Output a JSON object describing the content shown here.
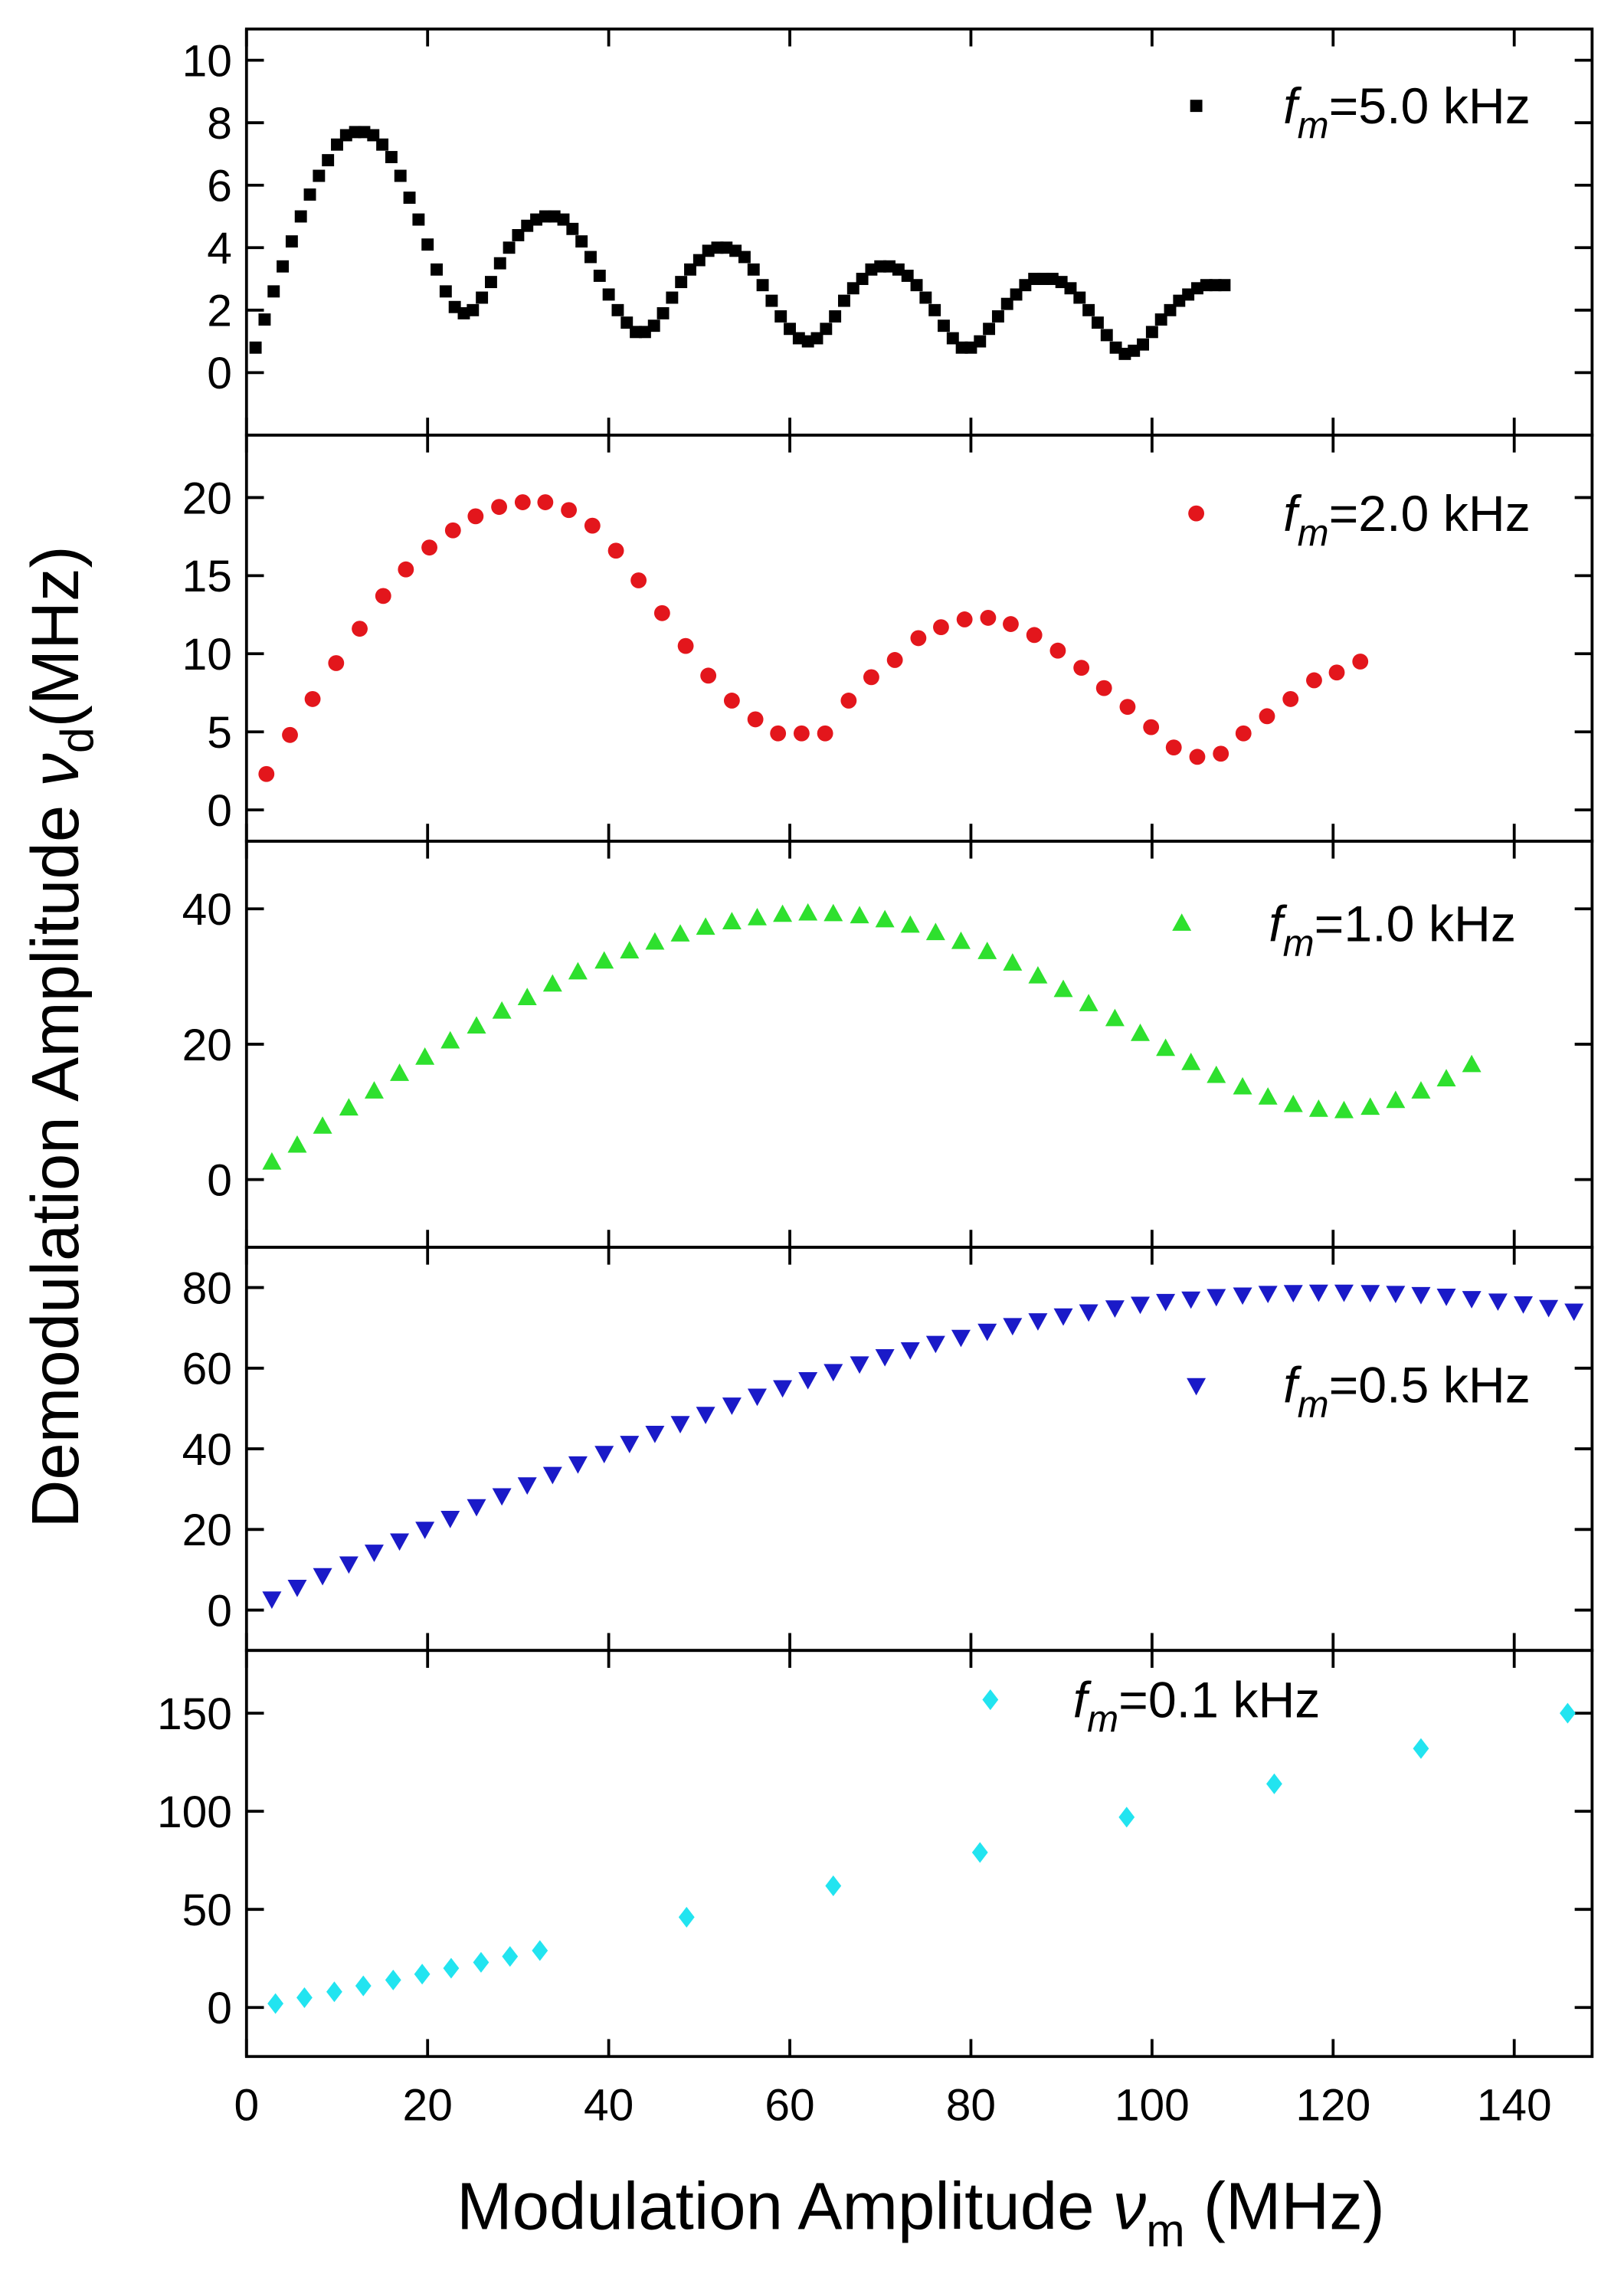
{
  "ylabel": {
    "text": "Demodulation Amplitude ",
    "symbol": "ν",
    "subscript": "d",
    "unit": "(MHz)"
  },
  "xlabel": {
    "text": "Modulation Amplitude ",
    "symbol": "ν",
    "subscript": "m",
    "unit": " (MHz)"
  },
  "chart_data": [
    {
      "type": "scatter",
      "marker": "square",
      "color": "#000000",
      "legend": {
        "symbol": "f",
        "subscript": "m",
        "text": "=5.0 kHz"
      },
      "x": [
        1,
        2,
        3,
        4,
        5,
        6,
        7,
        8,
        9,
        10,
        11,
        12,
        13,
        14,
        15,
        16,
        17,
        18,
        19,
        20,
        21,
        22,
        23,
        24,
        25,
        26,
        27,
        28,
        29,
        30,
        31,
        32,
        33,
        34,
        35,
        36,
        37,
        38,
        39,
        40,
        41,
        42,
        43,
        44,
        45,
        46,
        47,
        48,
        49,
        50,
        51,
        52,
        53,
        54,
        55,
        56,
        57,
        58,
        59,
        60,
        61,
        62,
        63,
        64,
        65,
        66,
        67,
        68,
        69,
        70,
        71,
        72,
        73,
        74,
        75,
        76,
        77,
        78,
        79,
        80,
        81,
        82,
        83,
        84,
        85,
        86,
        87,
        88,
        89,
        90,
        91,
        92,
        93,
        94,
        95,
        96,
        97,
        98,
        99,
        100,
        101,
        102,
        103,
        104,
        105,
        106,
        107,
        108
      ],
      "values": [
        0.8,
        1.7,
        2.6,
        3.4,
        4.2,
        5.0,
        5.7,
        6.3,
        6.8,
        7.3,
        7.6,
        7.7,
        7.7,
        7.6,
        7.3,
        6.9,
        6.3,
        5.6,
        4.9,
        4.1,
        3.3,
        2.6,
        2.1,
        1.9,
        2.0,
        2.4,
        2.9,
        3.5,
        4.0,
        4.4,
        4.7,
        4.9,
        5.0,
        5.0,
        4.9,
        4.6,
        4.2,
        3.7,
        3.1,
        2.5,
        2.0,
        1.6,
        1.3,
        1.3,
        1.5,
        1.9,
        2.4,
        2.9,
        3.3,
        3.6,
        3.9,
        4.0,
        4.0,
        3.9,
        3.7,
        3.3,
        2.8,
        2.3,
        1.8,
        1.4,
        1.1,
        1.0,
        1.1,
        1.4,
        1.8,
        2.3,
        2.7,
        3.0,
        3.3,
        3.4,
        3.4,
        3.3,
        3.1,
        2.8,
        2.4,
        2.0,
        1.5,
        1.1,
        0.8,
        0.8,
        1.0,
        1.4,
        1.8,
        2.2,
        2.5,
        2.8,
        3.0,
        3.0,
        3.0,
        2.9,
        2.7,
        2.4,
        2.0,
        1.6,
        1.2,
        0.8,
        0.6,
        0.7,
        0.9,
        1.3,
        1.7,
        2.0,
        2.3,
        2.5,
        2.7,
        2.8,
        2.8,
        2.8
      ],
      "ylim": [
        -2,
        11
      ],
      "yticks": [
        0,
        2,
        4,
        6,
        8,
        10
      ]
    },
    {
      "type": "scatter",
      "marker": "circle",
      "color": "#e3161c",
      "legend": {
        "symbol": "f",
        "subscript": "m",
        "text": "=2.0 kHz"
      },
      "x": [
        2.2,
        4.8,
        7.3,
        9.9,
        12.5,
        15.1,
        17.6,
        20.2,
        22.8,
        25.3,
        27.9,
        30.5,
        33.0,
        35.6,
        38.2,
        40.8,
        43.3,
        45.9,
        48.5,
        51.0,
        53.6,
        56.2,
        58.7,
        61.3,
        63.9,
        66.5,
        69.0,
        71.6,
        74.2,
        76.7,
        79.3,
        81.9,
        84.4,
        87.0,
        89.6,
        92.2,
        94.7,
        97.3,
        99.9,
        102.4,
        105.0,
        107.6,
        110.1,
        112.7,
        115.3,
        117.9,
        120.4,
        123.0
      ],
      "values": [
        2.3,
        4.8,
        7.1,
        9.4,
        11.6,
        13.7,
        15.4,
        16.8,
        17.9,
        18.8,
        19.4,
        19.7,
        19.7,
        19.2,
        18.2,
        16.6,
        14.7,
        12.6,
        10.5,
        8.6,
        7.0,
        5.8,
        4.9,
        4.9,
        4.9,
        7.0,
        8.5,
        9.6,
        11.0,
        11.7,
        12.2,
        12.3,
        11.9,
        11.2,
        10.2,
        9.1,
        7.8,
        6.6,
        5.3,
        4.0,
        3.4,
        3.6,
        4.9,
        6.0,
        7.1,
        8.3,
        8.8,
        9.5
      ],
      "ylim": [
        -2,
        24
      ],
      "yticks": [
        0,
        5,
        10,
        15,
        20
      ]
    },
    {
      "type": "scatter",
      "marker": "triangle-up",
      "color": "#2ee02e",
      "legend": {
        "symbol": "f",
        "subscript": "m",
        "text": "=1.0 kHz"
      },
      "x": [
        2.8,
        5.6,
        8.4,
        11.3,
        14.1,
        16.9,
        19.7,
        22.5,
        25.4,
        28.2,
        31.0,
        33.8,
        36.6,
        39.5,
        42.3,
        45.1,
        47.9,
        50.7,
        53.6,
        56.4,
        59.2,
        62.0,
        64.8,
        67.7,
        70.5,
        73.3,
        76.1,
        78.9,
        81.8,
        84.6,
        87.4,
        90.2,
        93.0,
        95.9,
        98.7,
        101.5,
        104.3,
        107.1,
        110.0,
        112.8,
        115.6,
        118.4,
        121.2,
        124.1,
        126.9,
        129.7,
        132.5,
        135.3
      ],
      "values": [
        2.5,
        5,
        7.8,
        10.5,
        13,
        15.6,
        18,
        20.4,
        22.6,
        24.8,
        26.8,
        28.8,
        30.6,
        32.2,
        33.7,
        35,
        36.2,
        37.2,
        38,
        38.6,
        39.1,
        39.3,
        39.2,
        38.9,
        38.3,
        37.5,
        36.4,
        35.1,
        33.6,
        31.9,
        30,
        28,
        25.9,
        23.7,
        21.5,
        19.3,
        17.2,
        15.3,
        13.6,
        12.1,
        11,
        10.3,
        10.1,
        10.6,
        11.6,
        13,
        14.8,
        16.9
      ],
      "ylim": [
        -10,
        50
      ],
      "yticks": [
        0,
        20,
        40
      ]
    },
    {
      "type": "scatter",
      "marker": "triangle-down",
      "color": "#1a1ac8",
      "legend": {
        "symbol": "f",
        "subscript": "m",
        "text": "=0.5 kHz"
      },
      "x": [
        2.8,
        5.6,
        8.4,
        11.3,
        14.1,
        16.9,
        19.7,
        22.5,
        25.4,
        28.2,
        31.0,
        33.8,
        36.6,
        39.5,
        42.3,
        45.1,
        47.9,
        50.7,
        53.6,
        56.4,
        59.2,
        62.0,
        64.8,
        67.7,
        70.5,
        73.3,
        76.1,
        78.9,
        81.8,
        84.6,
        87.4,
        90.2,
        93.0,
        95.9,
        98.7,
        101.5,
        104.3,
        107.1,
        110.0,
        112.8,
        115.6,
        118.4,
        121.2,
        124.1,
        126.9,
        129.7,
        132.5,
        135.3,
        138.2,
        141.0,
        143.8,
        146.6
      ],
      "values": [
        2.9,
        5.8,
        8.7,
        11.6,
        14.5,
        17.3,
        20.2,
        22.9,
        25.8,
        28.5,
        31.2,
        33.8,
        36.4,
        39.0,
        41.5,
        44.0,
        46.4,
        48.7,
        51.0,
        53.2,
        55.3,
        57.3,
        59.3,
        61.2,
        63.0,
        64.7,
        66.3,
        67.8,
        69.3,
        70.7,
        71.9,
        73.1,
        74.1,
        75.1,
        76.0,
        76.7,
        77.3,
        77.9,
        78.3,
        78.7,
        78.9,
        79.0,
        79.0,
        78.9,
        78.7,
        78.4,
        78.0,
        77.4,
        76.8,
        76.1,
        75.2,
        74.3
      ],
      "ylim": [
        -10,
        90
      ],
      "yticks": [
        0,
        20,
        40,
        60,
        80
      ]
    },
    {
      "type": "scatter",
      "marker": "diamond",
      "color": "#22e4f0",
      "legend": {
        "symbol": "f",
        "subscript": "m",
        "text": "=0.1 kHz"
      },
      "x": [
        3.2,
        6.4,
        9.7,
        12.9,
        16.2,
        19.4,
        22.6,
        25.9,
        29.1,
        32.4,
        48.6,
        64.8,
        81.0,
        97.2,
        113.5,
        129.7,
        145.9
      ],
      "values": [
        2,
        5,
        8,
        11,
        14,
        17,
        20,
        23,
        26,
        29,
        46,
        62,
        79,
        97,
        114,
        132,
        150
      ],
      "ylim": [
        -25,
        182
      ],
      "yticks": [
        0,
        50,
        100,
        150
      ],
      "xlim": [
        0,
        148.6
      ],
      "xticks": [
        0,
        20,
        40,
        60,
        80,
        100,
        120,
        140
      ]
    }
  ]
}
